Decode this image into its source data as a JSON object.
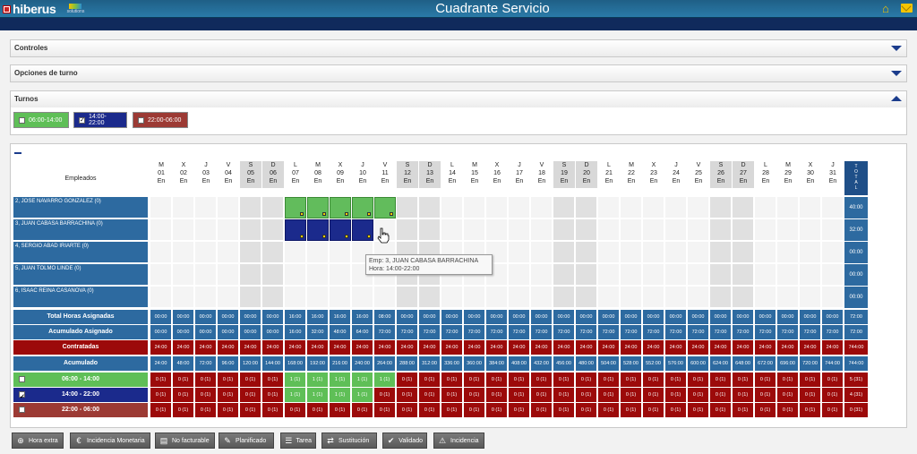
{
  "app": {
    "brand": "hiberus",
    "brand_sub": "solutions",
    "title": "Cuadrante Servicio"
  },
  "panels": {
    "controles": "Controles",
    "opciones": "Opciones de turno",
    "turnos": "Turnos"
  },
  "shifts": [
    {
      "label": "06:00-14:00",
      "checked": false,
      "color": "#5fbf57"
    },
    {
      "label": "14:00-22:00",
      "checked": true,
      "color": "#1b2a8c"
    },
    {
      "label": "22:00-06:00",
      "checked": false,
      "color": "#9c3a34"
    }
  ],
  "grid": {
    "employees_header": "Empleados",
    "total_header": "TOTAL",
    "days": [
      {
        "dow": "M",
        "num": "01",
        "mon": "En",
        "we": false
      },
      {
        "dow": "X",
        "num": "02",
        "mon": "En",
        "we": false
      },
      {
        "dow": "J",
        "num": "03",
        "mon": "En",
        "we": false
      },
      {
        "dow": "V",
        "num": "04",
        "mon": "En",
        "we": false
      },
      {
        "dow": "S",
        "num": "05",
        "mon": "En",
        "we": true
      },
      {
        "dow": "D",
        "num": "06",
        "mon": "En",
        "we": true
      },
      {
        "dow": "L",
        "num": "07",
        "mon": "En",
        "we": false
      },
      {
        "dow": "M",
        "num": "08",
        "mon": "En",
        "we": false
      },
      {
        "dow": "X",
        "num": "09",
        "mon": "En",
        "we": false
      },
      {
        "dow": "J",
        "num": "10",
        "mon": "En",
        "we": false
      },
      {
        "dow": "V",
        "num": "11",
        "mon": "En",
        "we": false
      },
      {
        "dow": "S",
        "num": "12",
        "mon": "En",
        "we": true
      },
      {
        "dow": "D",
        "num": "13",
        "mon": "En",
        "we": true
      },
      {
        "dow": "L",
        "num": "14",
        "mon": "En",
        "we": false
      },
      {
        "dow": "M",
        "num": "15",
        "mon": "En",
        "we": false
      },
      {
        "dow": "X",
        "num": "16",
        "mon": "En",
        "we": false
      },
      {
        "dow": "J",
        "num": "17",
        "mon": "En",
        "we": false
      },
      {
        "dow": "V",
        "num": "18",
        "mon": "En",
        "we": false
      },
      {
        "dow": "S",
        "num": "19",
        "mon": "En",
        "we": true
      },
      {
        "dow": "D",
        "num": "20",
        "mon": "En",
        "we": true
      },
      {
        "dow": "L",
        "num": "21",
        "mon": "En",
        "we": false
      },
      {
        "dow": "M",
        "num": "22",
        "mon": "En",
        "we": false
      },
      {
        "dow": "X",
        "num": "23",
        "mon": "En",
        "we": false
      },
      {
        "dow": "J",
        "num": "24",
        "mon": "En",
        "we": false
      },
      {
        "dow": "V",
        "num": "25",
        "mon": "En",
        "we": false
      },
      {
        "dow": "S",
        "num": "26",
        "mon": "En",
        "we": true
      },
      {
        "dow": "D",
        "num": "27",
        "mon": "En",
        "we": true
      },
      {
        "dow": "L",
        "num": "28",
        "mon": "En",
        "we": false
      },
      {
        "dow": "M",
        "num": "29",
        "mon": "En",
        "we": false
      },
      {
        "dow": "X",
        "num": "30",
        "mon": "En",
        "we": false
      },
      {
        "dow": "J",
        "num": "31",
        "mon": "En",
        "we": false
      }
    ],
    "employees": [
      {
        "name": "2, JOSE NAVARRO GONZALEZ (0)",
        "total": "40:00",
        "assign": {
          "6": "g",
          "7": "g",
          "8": "g",
          "9": "g",
          "10": "g"
        }
      },
      {
        "name": "3, JUAN CABASA BARRACHINA (0)",
        "total": "32:00",
        "assign": {
          "6": "n",
          "7": "n",
          "8": "n",
          "9": "n"
        }
      },
      {
        "name": "4, SERGIO ABAD IRIARTE (0)",
        "total": "00:00",
        "assign": {}
      },
      {
        "name": "5, JUAN TOLMO LINDE (0)",
        "total": "00:00",
        "assign": {}
      },
      {
        "name": "6, ISAAC REINA CASANOVA (0)",
        "total": "00:00",
        "assign": {}
      }
    ],
    "summary": [
      {
        "label": "Total Horas Asignadas",
        "color": "blue",
        "total": "72:00",
        "values": [
          "00:00",
          "00:00",
          "00:00",
          "00:00",
          "00:00",
          "00:00",
          "16:00",
          "16:00",
          "16:00",
          "16:00",
          "08:00",
          "00:00",
          "00:00",
          "00:00",
          "00:00",
          "00:00",
          "00:00",
          "00:00",
          "00:00",
          "00:00",
          "00:00",
          "00:00",
          "00:00",
          "00:00",
          "00:00",
          "00:00",
          "00:00",
          "00:00",
          "00:00",
          "00:00",
          "00:00"
        ]
      },
      {
        "label": "Acumulado Asignado",
        "color": "blue",
        "total": "72:00",
        "values": [
          "00:00",
          "00:00",
          "00:00",
          "00:00",
          "00:00",
          "00:00",
          "16:00",
          "32:00",
          "48:00",
          "64:00",
          "72:00",
          "72:00",
          "72:00",
          "72:00",
          "72:00",
          "72:00",
          "72:00",
          "72:00",
          "72:00",
          "72:00",
          "72:00",
          "72:00",
          "72:00",
          "72:00",
          "72:00",
          "72:00",
          "72:00",
          "72:00",
          "72:00",
          "72:00",
          "72:00"
        ]
      },
      {
        "label": "Contratadas",
        "color": "red",
        "total": "744:00",
        "values": [
          "24:00",
          "24:00",
          "24:00",
          "24:00",
          "24:00",
          "24:00",
          "24:00",
          "24:00",
          "24:00",
          "24:00",
          "24:00",
          "24:00",
          "24:00",
          "24:00",
          "24:00",
          "24:00",
          "24:00",
          "24:00",
          "24:00",
          "24:00",
          "24:00",
          "24:00",
          "24:00",
          "24:00",
          "24:00",
          "24:00",
          "24:00",
          "24:00",
          "24:00",
          "24:00",
          "24:00"
        ]
      },
      {
        "label": "Acumulado",
        "color": "blue",
        "total": "744:00",
        "values": [
          "24:00",
          "48:00",
          "72:00",
          "96:00",
          "120:00",
          "144:00",
          "168:00",
          "192:00",
          "216:00",
          "240:00",
          "264:00",
          "288:00",
          "312:00",
          "336:00",
          "360:00",
          "384:00",
          "408:00",
          "432:00",
          "456:00",
          "480:00",
          "504:00",
          "528:00",
          "552:00",
          "576:00",
          "600:00",
          "624:00",
          "648:00",
          "672:00",
          "696:00",
          "720:00",
          "744:00"
        ]
      }
    ],
    "shift_rows": [
      {
        "label": "06:00 - 14:00",
        "color": "green",
        "checked": false,
        "total": "5 (31)",
        "values": [
          "0 (1)",
          "0 (1)",
          "0 (1)",
          "0 (1)",
          "0 (1)",
          "0 (1)",
          "1 (1)",
          "1 (1)",
          "1 (1)",
          "1 (1)",
          "1 (1)",
          "0 (1)",
          "0 (1)",
          "0 (1)",
          "0 (1)",
          "0 (1)",
          "0 (1)",
          "0 (1)",
          "0 (1)",
          "0 (1)",
          "0 (1)",
          "0 (1)",
          "0 (1)",
          "0 (1)",
          "0 (1)",
          "0 (1)",
          "0 (1)",
          "0 (1)",
          "0 (1)",
          "0 (1)",
          "0 (1)"
        ]
      },
      {
        "label": "14:00 - 22:00",
        "color": "navy",
        "checked": true,
        "total": "4 (31)",
        "values": [
          "0 (1)",
          "0 (1)",
          "0 (1)",
          "0 (1)",
          "0 (1)",
          "0 (1)",
          "1 (1)",
          "1 (1)",
          "1 (1)",
          "1 (1)",
          "0 (1)",
          "0 (1)",
          "0 (1)",
          "0 (1)",
          "0 (1)",
          "0 (1)",
          "0 (1)",
          "0 (1)",
          "0 (1)",
          "0 (1)",
          "0 (1)",
          "0 (1)",
          "0 (1)",
          "0 (1)",
          "0 (1)",
          "0 (1)",
          "0 (1)",
          "0 (1)",
          "0 (1)",
          "0 (1)",
          "0 (1)"
        ]
      },
      {
        "label": "22:00 - 06:00",
        "color": "brick",
        "checked": false,
        "total": "0 (31)",
        "values": [
          "0 (1)",
          "0 (1)",
          "0 (1)",
          "0 (1)",
          "0 (1)",
          "0 (1)",
          "0 (1)",
          "0 (1)",
          "0 (1)",
          "0 (1)",
          "0 (1)",
          "0 (1)",
          "0 (1)",
          "0 (1)",
          "0 (1)",
          "0 (1)",
          "0 (1)",
          "0 (1)",
          "0 (1)",
          "0 (1)",
          "0 (1)",
          "0 (1)",
          "0 (1)",
          "0 (1)",
          "0 (1)",
          "0 (1)",
          "0 (1)",
          "0 (1)",
          "0 (1)",
          "0 (1)",
          "0 (1)"
        ]
      }
    ]
  },
  "tooltip": {
    "line1": "Emp: 3, JUAN CABASA BARRACHINA",
    "line2": "Hora: 14:00-22:00"
  },
  "actions": [
    {
      "label": "Hora extra",
      "icon": "plus-circle-icon",
      "glyph": "⊕"
    },
    {
      "label": "Incidencia Monetaria",
      "icon": "euro-icon",
      "glyph": "€"
    },
    {
      "label": "No facturable",
      "icon": "document-x-icon",
      "glyph": "▤"
    },
    {
      "label": "Planificado",
      "icon": "document-edit-icon",
      "glyph": "✎"
    },
    {
      "label": "Tarea",
      "icon": "task-list-icon",
      "glyph": "☰"
    },
    {
      "label": "Sustitución",
      "icon": "users-swap-icon",
      "glyph": "⇄"
    },
    {
      "label": "Validado",
      "icon": "checkmark-icon",
      "glyph": "✔"
    },
    {
      "label": "Incidencia",
      "icon": "warning-icon",
      "glyph": "⚠"
    }
  ]
}
